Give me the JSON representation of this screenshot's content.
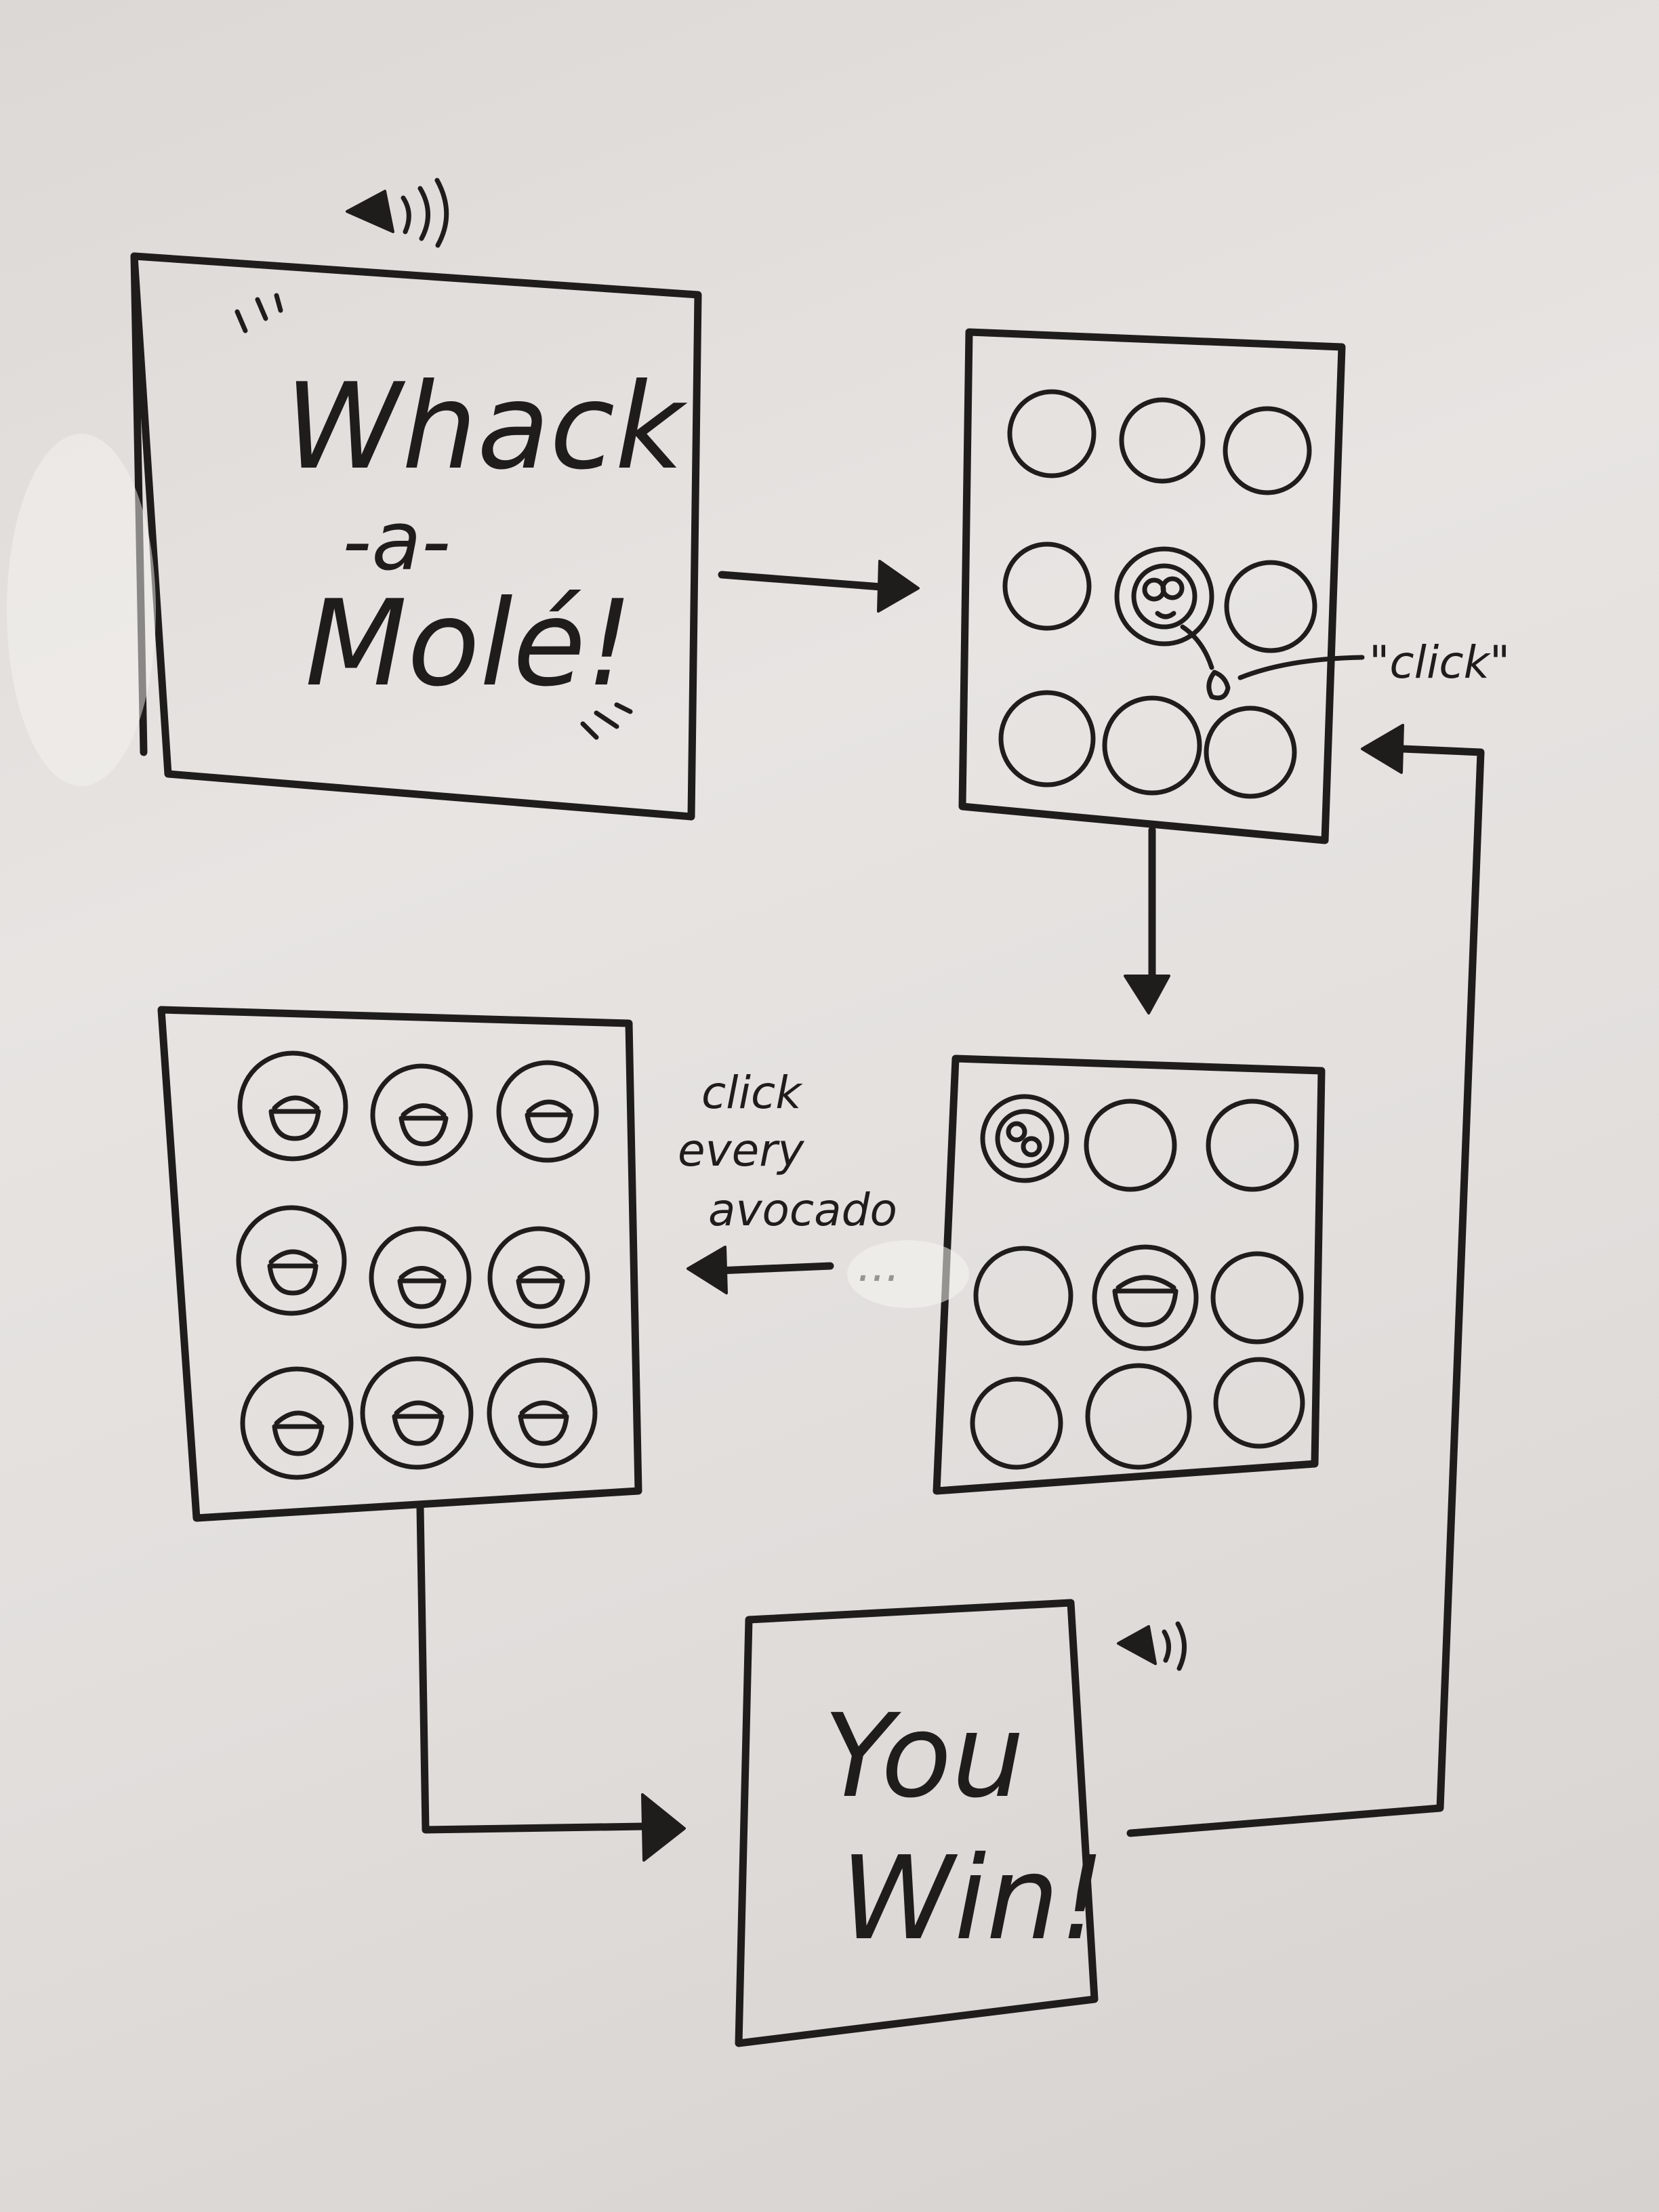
{
  "title_screen": {
    "line1": "Whack",
    "line2": "-a-",
    "line3": "Molé!"
  },
  "hit_label": "\"click\"",
  "transition_note": {
    "line1": "click",
    "line2": "every",
    "line3": "avocado",
    "ellipsis": "..."
  },
  "win_screen": {
    "line1": "You",
    "line2": "Win!"
  },
  "icons": [
    "speaker-icon",
    "mole-icon",
    "avocado-icon",
    "cursor-icon"
  ],
  "colors": {
    "ink": "#1f1d1c",
    "board": "#e3e0de"
  }
}
